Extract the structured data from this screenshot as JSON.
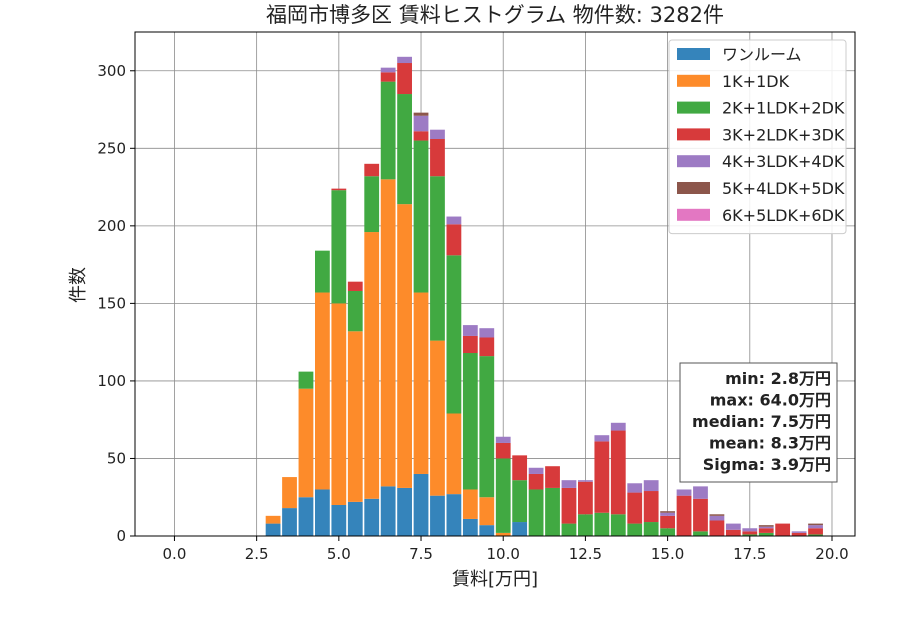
{
  "chart_data": {
    "type": "bar",
    "stacked": true,
    "title": "福岡市博多区 賃料ヒストグラム 物件数: 3282件",
    "xlabel": "賃料[万円]",
    "ylabel": "件数",
    "xlim": [
      -1.2,
      20.7
    ],
    "ylim": [
      0,
      325
    ],
    "x_ticks": [
      0.0,
      2.5,
      5.0,
      7.5,
      10.0,
      12.5,
      15.0,
      17.5,
      20.0
    ],
    "x_tick_labels": [
      "0.0",
      "2.5",
      "5.0",
      "7.5",
      "10.0",
      "12.5",
      "15.0",
      "17.5",
      "20.0"
    ],
    "y_ticks": [
      0,
      50,
      100,
      150,
      200,
      250,
      300
    ],
    "y_tick_labels": [
      "0",
      "50",
      "100",
      "150",
      "200",
      "250",
      "300"
    ],
    "grid": true,
    "legend_position": "top-right",
    "bin_width": 0.5,
    "x": [
      3.0,
      3.5,
      4.0,
      4.5,
      5.0,
      5.5,
      6.0,
      6.5,
      7.0,
      7.5,
      8.0,
      8.5,
      9.0,
      9.5,
      10.0,
      10.5,
      11.0,
      11.5,
      12.0,
      12.5,
      13.0,
      13.5,
      14.0,
      14.5,
      15.0,
      15.5,
      16.0,
      16.5,
      17.0,
      17.5,
      18.0,
      18.5,
      19.0,
      19.5
    ],
    "series": [
      {
        "name": "ワンルーム",
        "color": "#3584bb",
        "values": [
          8,
          18,
          25,
          30,
          20,
          22,
          24,
          32,
          31,
          40,
          26,
          27,
          11,
          7,
          0,
          9,
          0,
          0,
          0,
          0,
          0,
          0,
          0,
          0,
          0,
          0,
          0,
          0,
          0,
          0,
          0,
          0,
          0,
          0
        ]
      },
      {
        "name": "1K+1DK",
        "color": "#fd8b2a",
        "values": [
          5,
          20,
          70,
          127,
          130,
          110,
          172,
          198,
          183,
          117,
          100,
          52,
          19,
          18,
          2,
          0,
          0,
          0,
          0,
          0,
          0,
          0,
          0,
          0,
          0,
          0,
          0,
          0,
          0,
          0,
          0,
          0,
          0,
          0
        ]
      },
      {
        "name": "2K+1LDK+2DK",
        "color": "#41a942",
        "values": [
          0,
          0,
          11,
          27,
          73,
          26,
          36,
          63,
          71,
          98,
          106,
          102,
          88,
          91,
          48,
          27,
          30,
          31,
          8,
          14,
          15,
          14,
          8,
          9,
          5,
          0,
          3,
          0,
          0,
          1,
          2,
          0,
          0,
          1
        ]
      },
      {
        "name": "3K+2LDK+3DK",
        "color": "#d73a3b",
        "values": [
          0,
          0,
          0,
          0,
          1,
          6,
          8,
          6,
          20,
          6,
          24,
          20,
          11,
          12,
          10,
          16,
          10,
          14,
          23,
          21,
          46,
          54,
          20,
          20,
          8,
          26,
          21,
          10,
          4,
          2,
          3,
          8,
          2,
          4
        ]
      },
      {
        "name": "4K+3LDK+4DK",
        "color": "#9d7bc4",
        "values": [
          0,
          0,
          0,
          0,
          0,
          0,
          0,
          3,
          4,
          10,
          6,
          5,
          7,
          6,
          4,
          0,
          4,
          0,
          5,
          1,
          4,
          5,
          6,
          7,
          2,
          4,
          8,
          3,
          4,
          2,
          1,
          0,
          1,
          2
        ]
      },
      {
        "name": "5K+4LDK+5DK",
        "color": "#8c564b",
        "values": [
          0,
          0,
          0,
          0,
          0,
          0,
          0,
          0,
          0,
          2,
          0,
          0,
          0,
          0,
          0,
          0,
          0,
          0,
          0,
          0,
          0,
          0,
          0,
          0,
          1,
          0,
          0,
          1,
          0,
          0,
          1,
          0,
          0,
          1
        ]
      },
      {
        "name": "6K+5LDK+6DK",
        "color": "#e377c2",
        "values": [
          0,
          0,
          0,
          0,
          0,
          0,
          0,
          0,
          0,
          0,
          0,
          0,
          0,
          0,
          0,
          0,
          0,
          0,
          0,
          0,
          0,
          0,
          0,
          0,
          0,
          0,
          0,
          0,
          0,
          0,
          0,
          0,
          0,
          0
        ]
      }
    ],
    "stats": [
      "min: 2.8万円",
      "max: 64.0万円",
      "median: 7.5万円",
      "mean: 8.3万円",
      "Sigma: 3.9万円"
    ]
  }
}
